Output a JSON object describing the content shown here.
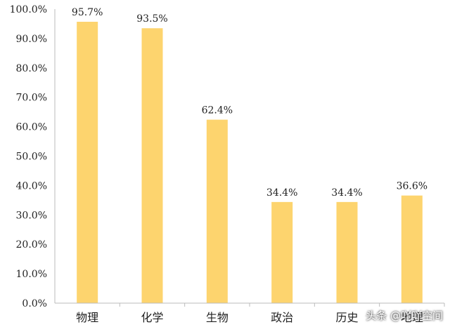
{
  "chart_data": {
    "type": "bar",
    "categories": [
      "物理",
      "化学",
      "生物",
      "政治",
      "历史",
      "地理"
    ],
    "values": [
      95.7,
      93.5,
      62.4,
      34.4,
      34.4,
      36.6
    ],
    "data_labels": [
      "95.7%",
      "93.5%",
      "62.4%",
      "34.4%",
      "34.4%",
      "36.6%"
    ],
    "y_ticks": [
      "0.0%",
      "10.0%",
      "20.0%",
      "30.0%",
      "40.0%",
      "50.0%",
      "60.0%",
      "70.0%",
      "80.0%",
      "90.0%",
      "100.0%"
    ],
    "ylim": [
      0,
      100
    ],
    "grid": false,
    "bar_color": "#FDD46E",
    "axis_color": "#bbbbbb"
  },
  "watermark": "头条 @吖吖空间"
}
